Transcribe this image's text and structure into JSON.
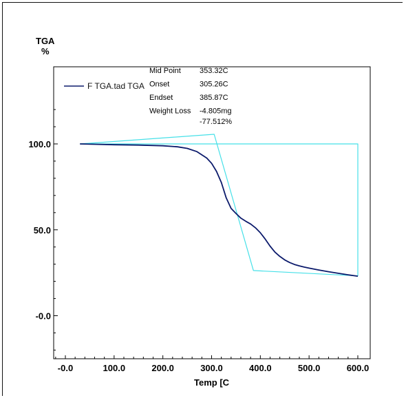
{
  "chart_data": {
    "type": "line",
    "ylabel": "TGA",
    "yunit": "%",
    "xlabel": "Temp [C",
    "xlim": [
      -25,
      600
    ],
    "ylim": [
      -25,
      125
    ],
    "x_ticks": [
      {
        "value": 0,
        "label": "-0.0"
      },
      {
        "value": 100,
        "label": "100.0"
      },
      {
        "value": 200,
        "label": "200.0"
      },
      {
        "value": 300,
        "label": "300.0"
      },
      {
        "value": 400,
        "label": "400.0"
      },
      {
        "value": 500,
        "label": "500.0"
      },
      {
        "value": 600,
        "label": "600.0"
      }
    ],
    "y_ticks": [
      {
        "value": 100,
        "label": "100.0"
      },
      {
        "value": 50,
        "label": "50.0"
      },
      {
        "value": 0,
        "label": "-0.0"
      }
    ],
    "series": [
      {
        "name": "F TGA.tad  TGA",
        "color": "#0b1a6b",
        "x": [
          30,
          60,
          100,
          150,
          200,
          230,
          250,
          270,
          290,
          300,
          310,
          320,
          330,
          340,
          350,
          360,
          370,
          380,
          390,
          400,
          410,
          420,
          430,
          440,
          450,
          460,
          470,
          480,
          490,
          500,
          520,
          540,
          560,
          580,
          600
        ],
        "y": [
          100.0,
          99.8,
          99.5,
          99.3,
          98.9,
          98.3,
          97.4,
          95.5,
          91.8,
          88.7,
          84.0,
          77.5,
          68.6,
          62.5,
          59.5,
          56.8,
          55.0,
          53.4,
          51.2,
          48.3,
          44.6,
          40.5,
          37.0,
          34.5,
          32.5,
          31.0,
          29.8,
          29.0,
          28.3,
          27.7,
          26.6,
          25.6,
          24.7,
          23.8,
          23.0
        ]
      },
      {
        "name": "",
        "color": "#45e0e8",
        "x": [
          30,
          305.26,
          385.87,
          600,
          600,
          30
        ],
        "y": [
          100,
          105.6,
          26.3,
          23.2,
          100,
          100
        ]
      }
    ],
    "annotations": [
      {
        "label": "Mid Point",
        "value": "353.32C"
      },
      {
        "label": "Onset",
        "value": "305.26C"
      },
      {
        "label": "Endset",
        "value": "385.87C"
      },
      {
        "label": "Weight Loss",
        "value": "-4.805mg"
      },
      {
        "label": "",
        "value": "-77.512%"
      }
    ]
  }
}
